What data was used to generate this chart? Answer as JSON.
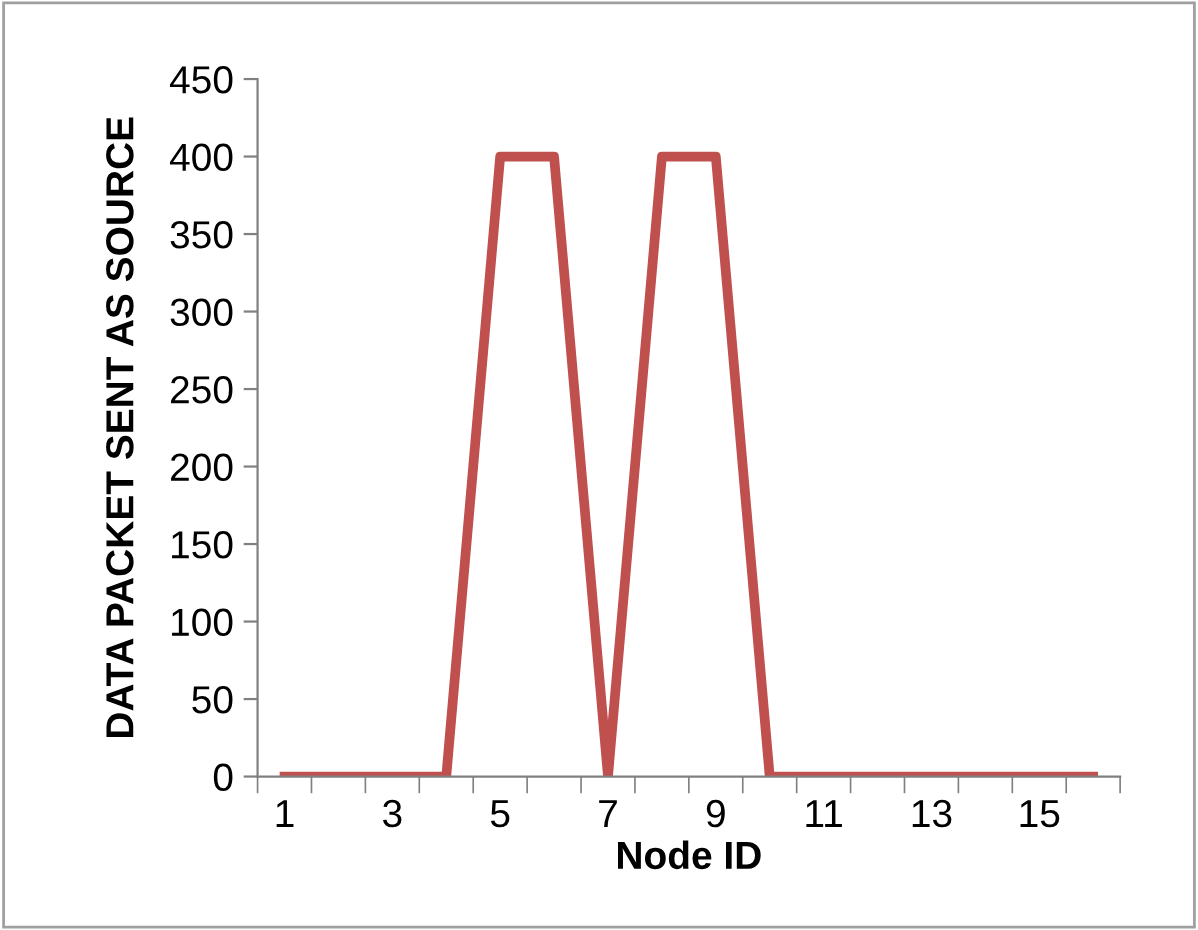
{
  "chart_data": {
    "type": "line",
    "xlabel": "Node ID",
    "ylabel": "DATA PACKET SENT AS SOURCE",
    "categories": [
      "1",
      null,
      "3",
      null,
      "5",
      null,
      "7",
      null,
      "9",
      null,
      "11",
      null,
      "13",
      null,
      "15",
      null
    ],
    "series": [
      {
        "color": "#c0504d",
        "values": [
          0,
          0,
          0,
          0,
          400,
          400,
          0,
          400,
          400,
          0,
          0,
          0,
          0,
          0,
          0,
          0
        ]
      }
    ],
    "ylim": [
      0,
      450
    ],
    "yticks": [
      0,
      50,
      100,
      150,
      200,
      250,
      300,
      350,
      400,
      450
    ],
    "grid": false,
    "legend": false,
    "marker": "none",
    "line_style": "solid"
  }
}
